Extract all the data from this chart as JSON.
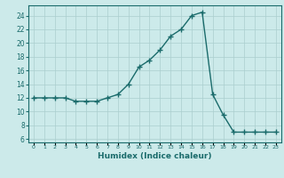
{
  "x": [
    0,
    1,
    2,
    3,
    4,
    5,
    6,
    7,
    8,
    9,
    10,
    11,
    12,
    13,
    14,
    15,
    16,
    17,
    18,
    19,
    20,
    21,
    22,
    23
  ],
  "y": [
    12,
    12,
    12,
    12,
    11.5,
    11.5,
    11.5,
    12,
    12.5,
    14,
    16.5,
    17.5,
    19,
    21,
    22,
    24,
    24.5,
    12.5,
    9.5,
    7,
    7,
    7,
    7,
    7
  ],
  "line_color": "#1a6b6b",
  "marker": "+",
  "background_color": "#cceaea",
  "grid_color": "#aacece",
  "xlabel": "Humidex (Indice chaleur)",
  "xlim": [
    -0.5,
    23.5
  ],
  "ylim": [
    5.5,
    25.5
  ],
  "yticks": [
    6,
    8,
    10,
    12,
    14,
    16,
    18,
    20,
    22,
    24
  ],
  "xticks": [
    0,
    1,
    2,
    3,
    4,
    5,
    6,
    7,
    8,
    9,
    10,
    11,
    12,
    13,
    14,
    15,
    16,
    17,
    18,
    19,
    20,
    21,
    22,
    23
  ],
  "xtick_labels": [
    "0",
    "1",
    "2",
    "3",
    "4",
    "5",
    "6",
    "7",
    "8",
    "9",
    "10",
    "11",
    "12",
    "13",
    "14",
    "15",
    "16",
    "17",
    "18",
    "19",
    "20",
    "21",
    "22",
    "23"
  ],
  "linewidth": 1.0,
  "markersize": 4
}
